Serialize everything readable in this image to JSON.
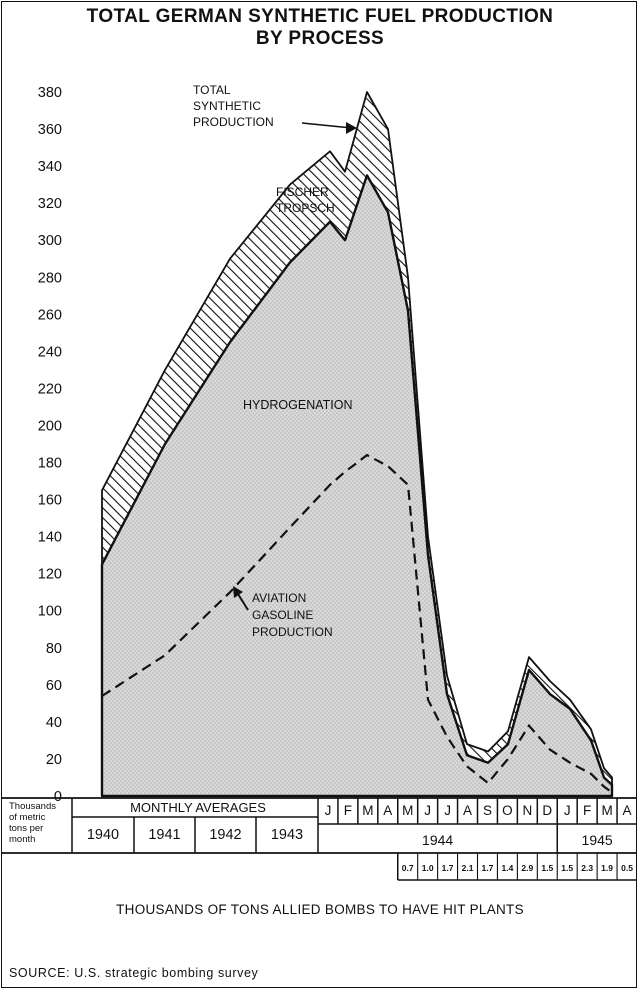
{
  "title_line1": "TOTAL GERMAN SYNTHETIC FUEL PRODUCTION",
  "title_line2": "BY PROCESS",
  "bombs_caption": "THOUSANDS OF TONS ALLIED BOMBS TO HAVE HIT PLANTS",
  "source": "SOURCE: U.S. strategic bombing survey",
  "colors": {
    "ink": "#111111",
    "fill_gray": "#d9d9d9",
    "paper": "#ffffff"
  },
  "chart_data": {
    "type": "area",
    "ylabel": "Thousands of metric tons per month",
    "ylim": [
      0,
      380
    ],
    "y_ticks": [
      0,
      20,
      40,
      60,
      80,
      100,
      120,
      140,
      160,
      180,
      200,
      220,
      240,
      260,
      280,
      300,
      320,
      340,
      360,
      380
    ],
    "x_header": {
      "averages_label": "MONTHLY AVERAGES",
      "average_years": [
        "1940",
        "1941",
        "1942",
        "1943"
      ],
      "months": [
        "J",
        "F",
        "M",
        "A",
        "M",
        "J",
        "J",
        "A",
        "S",
        "O",
        "N",
        "D",
        "J",
        "F",
        "M",
        "A"
      ],
      "year_1944": "1944",
      "year_1945": "1945"
    },
    "x": [
      "1940",
      "1941",
      "1942",
      "1943",
      "Jan 1944",
      "Feb 1944",
      "Mar 1944",
      "Apr 1944",
      "May 1944",
      "Jun 1944",
      "Jul 1944",
      "Aug 1944",
      "Sep 1944",
      "Oct 1944",
      "Nov 1944",
      "Dec 1944",
      "Jan 1945",
      "Feb 1945",
      "Mar 1945",
      "Apr 1945"
    ],
    "series": [
      {
        "key": "total",
        "values": [
          165,
          230,
          290,
          330,
          348,
          337,
          380,
          360,
          280,
          140,
          65,
          28,
          24,
          35,
          75,
          62,
          52,
          36,
          15,
          10
        ]
      },
      {
        "key": "hydrogenation",
        "values": [
          125,
          190,
          245,
          288,
          310,
          300,
          335,
          315,
          262,
          130,
          55,
          22,
          18,
          28,
          68,
          55,
          47,
          30,
          10,
          6
        ]
      },
      {
        "key": "aviation_gasoline",
        "values": [
          54,
          76,
          110,
          145,
          168,
          175,
          184,
          178,
          168,
          52,
          32,
          16,
          7,
          20,
          38,
          25,
          18,
          12,
          5,
          2
        ]
      }
    ],
    "annotations": {
      "total": [
        "TOTAL",
        "SYNTHETIC",
        "PRODUCTION"
      ],
      "fischer": [
        "FISCHER",
        "TROPSCH"
      ],
      "hydrogenation": "HYDROGENATION",
      "aviation": [
        "AVIATION",
        "GASOLINE",
        "PRODUCTION"
      ]
    },
    "bombs": [
      "0.7",
      "1.0",
      "1.7",
      "2.1",
      "1.7",
      "1.4",
      "2.9",
      "1.5",
      "1.5",
      "2.3",
      "1.9",
      "0.5"
    ],
    "y_axis_unit_label": [
      "Thousands",
      "of metric",
      "tons per",
      "month"
    ]
  }
}
